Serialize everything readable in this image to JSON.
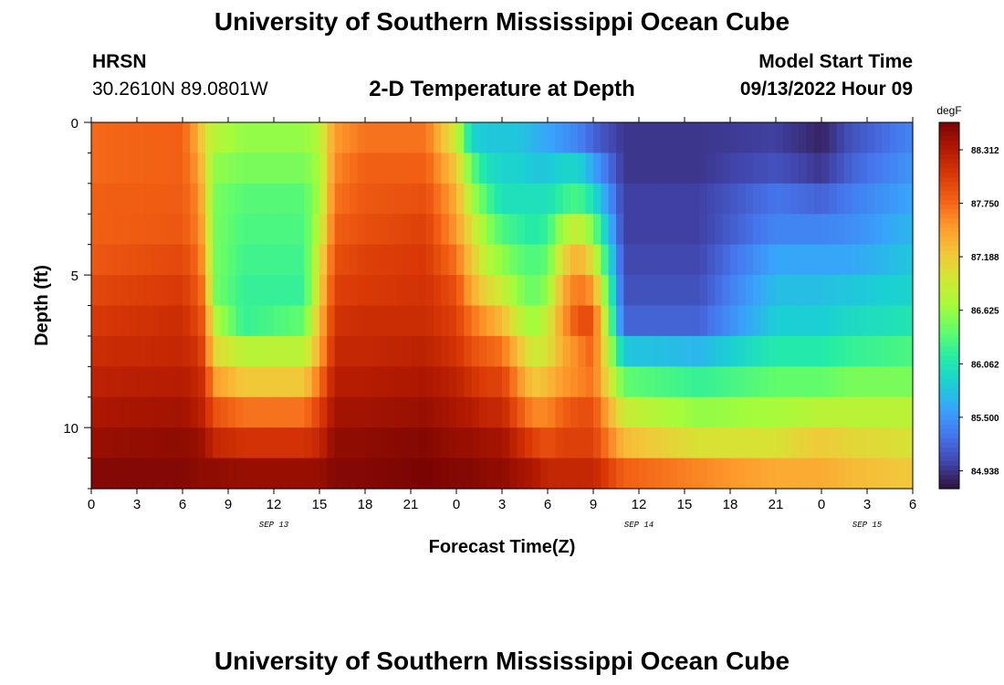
{
  "header": {
    "title": "University of Southern Mississippi Ocean Cube",
    "station": "HRSN",
    "coords": "30.2610N  89.0801W",
    "plot_title": "2-D Temperature at Depth",
    "model_label": "Model Start Time",
    "model_time": "09/13/2022 Hour 09"
  },
  "footer": {
    "title": "University of Southern Mississippi Ocean Cube"
  },
  "chart_data": {
    "type": "heatmap",
    "title": "2-D Temperature at Depth",
    "xlabel": "Forecast Time(Z)",
    "ylabel": "Depth (ft)",
    "x_hours_range": [
      0,
      54
    ],
    "x_tick_labels": [
      "0",
      "3",
      "6",
      "9",
      "12",
      "15",
      "18",
      "21",
      "0",
      "3",
      "6",
      "9",
      "12",
      "15",
      "18",
      "21",
      "0",
      "3",
      "6"
    ],
    "date_labels": [
      {
        "hour": 12,
        "text": "SEP 13"
      },
      {
        "hour": 36,
        "text": "SEP 14"
      },
      {
        "hour": 51,
        "text": "SEP 15"
      }
    ],
    "ylim": [
      0,
      12
    ],
    "y_tick_labels": [
      "0",
      "5",
      "10"
    ],
    "y_ticks": [
      0,
      5,
      10
    ],
    "colorbar": {
      "unit": "degF",
      "min": 84.75,
      "max": 88.6,
      "ticks": [
        "88.312",
        "87.750",
        "87.188",
        "86.625",
        "86.062",
        "85.500",
        "84.938"
      ],
      "colors": [
        "#30123b",
        "#4145ab",
        "#4675ed",
        "#39a2fc",
        "#1bcfd4",
        "#24eca6",
        "#61fc6c",
        "#a4fc3b",
        "#d1e834",
        "#f3c63a",
        "#fe9b2d",
        "#f36315",
        "#d93806",
        "#b11901",
        "#7a0403"
      ]
    },
    "depth_rows": 12,
    "x_columns": 108,
    "profiles_time_hours": [
      0,
      6,
      7,
      7.5,
      8,
      10,
      14,
      15,
      16,
      18,
      22,
      24,
      25,
      26,
      27,
      28,
      29,
      30,
      31,
      32,
      33,
      35,
      40,
      45,
      48,
      50,
      54
    ],
    "profiles_degF": [
      [
        87.75,
        87.75,
        87.8,
        87.8,
        87.85,
        87.95,
        88.05,
        88.15,
        88.25,
        88.35,
        88.45,
        88.55
      ],
      [
        87.8,
        87.8,
        87.82,
        87.85,
        87.95,
        88.05,
        88.15,
        88.2,
        88.3,
        88.4,
        88.5,
        88.55
      ],
      [
        87.4,
        87.5,
        87.6,
        87.65,
        87.75,
        87.85,
        87.95,
        88.1,
        88.2,
        88.3,
        88.45,
        88.5
      ],
      [
        87.0,
        87.1,
        87.2,
        87.3,
        87.4,
        87.6,
        87.8,
        87.9,
        88.1,
        88.2,
        88.4,
        88.5
      ],
      [
        86.8,
        86.6,
        86.5,
        86.5,
        86.5,
        86.5,
        86.8,
        87.1,
        87.5,
        87.9,
        88.2,
        88.5
      ],
      [
        86.6,
        86.5,
        86.35,
        86.3,
        86.25,
        86.2,
        86.2,
        86.8,
        87.2,
        87.7,
        88.1,
        88.45
      ],
      [
        86.6,
        86.5,
        86.35,
        86.3,
        86.25,
        86.2,
        86.4,
        86.8,
        87.2,
        87.7,
        88.1,
        88.45
      ],
      [
        86.8,
        86.7,
        86.7,
        86.8,
        87.0,
        87.1,
        87.3,
        87.4,
        87.7,
        88.0,
        88.2,
        88.45
      ],
      [
        87.5,
        87.6,
        87.7,
        87.8,
        87.9,
        88.0,
        88.1,
        88.2,
        88.3,
        88.4,
        88.5,
        88.55
      ],
      [
        87.7,
        87.8,
        87.85,
        87.9,
        88.0,
        88.05,
        88.15,
        88.2,
        88.3,
        88.4,
        88.5,
        88.55
      ],
      [
        87.7,
        87.8,
        87.9,
        88.0,
        88.05,
        88.1,
        88.15,
        88.25,
        88.35,
        88.45,
        88.55,
        88.6
      ],
      [
        86.9,
        87.2,
        87.4,
        87.5,
        87.7,
        87.9,
        88.0,
        88.1,
        88.25,
        88.35,
        88.45,
        88.55
      ],
      [
        85.9,
        86.4,
        86.7,
        87.0,
        87.2,
        87.4,
        87.7,
        87.9,
        88.1,
        88.3,
        88.45,
        88.55
      ],
      [
        85.8,
        86.0,
        86.3,
        86.6,
        86.8,
        87.1,
        87.5,
        87.8,
        88.0,
        88.2,
        88.4,
        88.5
      ],
      [
        85.8,
        85.9,
        86.0,
        86.3,
        86.6,
        86.9,
        87.3,
        87.7,
        88.0,
        88.2,
        88.4,
        88.5
      ],
      [
        85.8,
        85.9,
        86.0,
        86.2,
        86.4,
        86.6,
        86.9,
        87.3,
        87.6,
        87.9,
        88.2,
        88.4
      ],
      [
        85.7,
        85.8,
        86.0,
        86.1,
        86.3,
        86.4,
        86.6,
        86.9,
        87.2,
        87.6,
        88.0,
        88.35
      ],
      [
        85.6,
        85.8,
        86.0,
        86.2,
        86.4,
        86.6,
        86.9,
        87.0,
        87.3,
        87.6,
        87.9,
        88.2
      ],
      [
        85.5,
        85.9,
        86.2,
        86.7,
        87.1,
        87.4,
        87.5,
        87.4,
        87.5,
        87.8,
        88.0,
        88.2
      ],
      [
        85.4,
        85.9,
        86.3,
        86.9,
        87.4,
        87.7,
        87.9,
        87.6,
        87.6,
        87.9,
        88.0,
        88.2
      ],
      [
        85.2,
        85.6,
        86.0,
        86.5,
        87.0,
        87.5,
        87.9,
        87.8,
        87.7,
        87.9,
        88.0,
        88.2
      ],
      [
        84.95,
        84.95,
        85.0,
        85.0,
        85.05,
        85.1,
        85.2,
        85.8,
        86.4,
        86.9,
        87.3,
        87.8
      ],
      [
        84.95,
        84.95,
        85.0,
        85.0,
        85.05,
        85.1,
        85.2,
        85.7,
        86.2,
        86.6,
        87.0,
        87.6
      ],
      [
        85.0,
        85.1,
        85.3,
        85.4,
        85.6,
        85.75,
        85.85,
        86.1,
        86.4,
        86.7,
        87.0,
        87.4
      ],
      [
        84.85,
        84.95,
        85.2,
        85.4,
        85.6,
        85.75,
        85.85,
        86.1,
        86.4,
        86.8,
        87.2,
        87.4
      ],
      [
        85.1,
        85.2,
        85.35,
        85.45,
        85.6,
        85.8,
        85.95,
        86.2,
        86.5,
        86.8,
        87.1,
        87.3
      ],
      [
        85.4,
        85.5,
        85.6,
        85.7,
        85.8,
        85.9,
        86.05,
        86.3,
        86.5,
        86.8,
        87.0,
        87.2
      ]
    ]
  }
}
